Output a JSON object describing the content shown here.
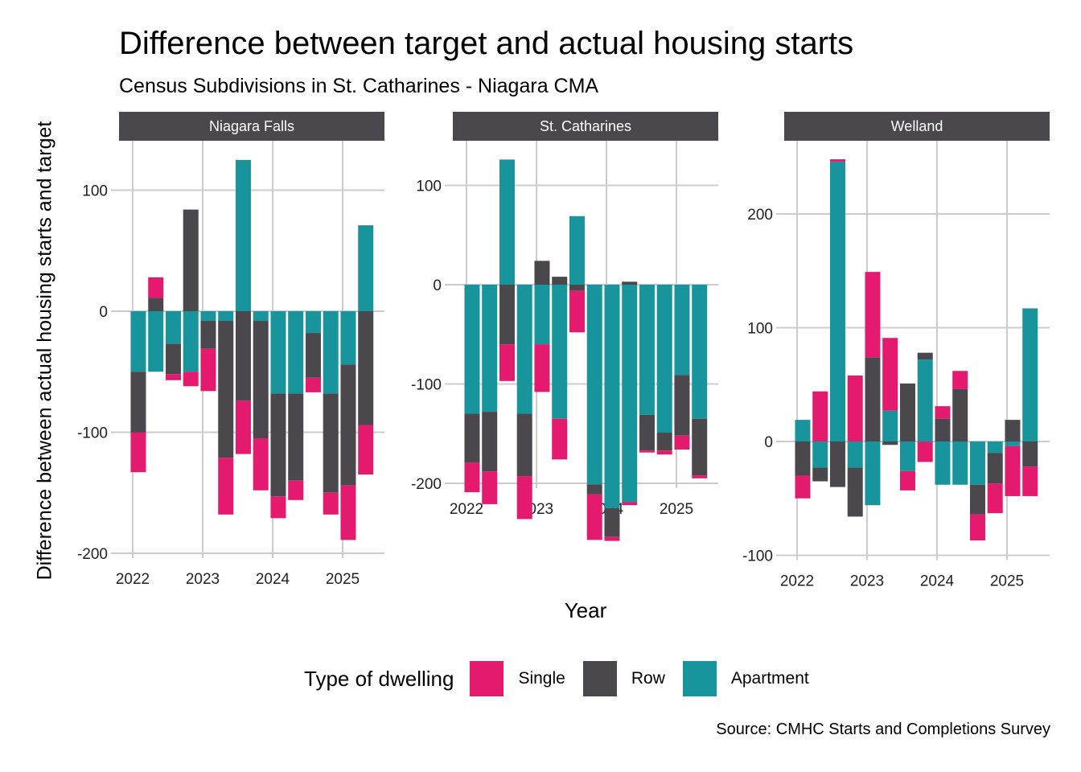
{
  "title": "Difference between target and actual housing starts",
  "subtitle": "Census Subdivisions in St. Catharines - Niagara CMA",
  "caption": "Source: CMHC Starts and Completions Survey",
  "legend": {
    "title": "Type of dwelling",
    "items": [
      {
        "label": "Single",
        "color": "#E31A6E"
      },
      {
        "label": "Row",
        "color": "#4A484C"
      },
      {
        "label": "Apartment",
        "color": "#18949D"
      }
    ]
  },
  "colors": {
    "Single": "#E31A6E",
    "Row": "#4A484C",
    "Apartment": "#18949D",
    "strip": "#4A484C",
    "grid": "#CCCCCC"
  },
  "chart_data": {
    "type": "bar",
    "stacked": true,
    "title": "Difference between target and actual housing starts",
    "subtitle": "Census Subdivisions in St. Catharines - Niagara CMA",
    "xlabel": "Year",
    "ylabel": "Difference between actual housing starts and target",
    "legend_position": "bottom",
    "grid": true,
    "x_ticks": [
      "2022",
      "2023",
      "2024",
      "2025"
    ],
    "series_names": [
      "Single",
      "Row",
      "Apartment"
    ],
    "x": [
      2022.08,
      2022.33,
      2022.58,
      2022.83,
      2023.08,
      2023.33,
      2023.58,
      2023.83,
      2024.08,
      2024.33,
      2024.58,
      2024.83,
      2025.08,
      2025.33
    ],
    "panels": [
      {
        "name": "Niagara Falls",
        "ylim": [
          -205,
          145
        ],
        "y_ticks": [
          -200,
          -100,
          0,
          100
        ],
        "series": [
          {
            "name": "Single",
            "values": [
              -33,
              17,
              -5,
              -12,
              -35,
              -47,
              -44,
              -43,
              -18,
              -16,
              -12,
              -18,
              -45,
              -41
            ]
          },
          {
            "name": "Row",
            "values": [
              -50,
              11,
              -25,
              84,
              -23,
              -113,
              -74,
              -97,
              -85,
              -72,
              -37,
              -82,
              -100,
              -94
            ]
          },
          {
            "name": "Apartment",
            "values": [
              -50,
              -50,
              -27,
              -50,
              -8,
              -8,
              125,
              -8,
              -68,
              -68,
              -18,
              -68,
              -44,
              71
            ]
          }
        ]
      },
      {
        "name": "St. Catharines",
        "ylim": [
          -265,
          145
        ],
        "y_ticks": [
          -200,
          -100,
          0,
          100
        ],
        "series": [
          {
            "name": "Single",
            "values": [
              -30,
              -33,
              -37,
              -43,
              -48,
              -41,
              -42,
              -46,
              -4,
              -3,
              -2,
              -4,
              -14,
              -3
            ]
          },
          {
            "name": "Row",
            "values": [
              -49,
              -60,
              -60,
              -63,
              24,
              8,
              -6,
              -10,
              -29,
              3,
              -36,
              -18,
              -61,
              -57
            ]
          },
          {
            "name": "Apartment",
            "values": [
              -130,
              -128,
              126,
              -130,
              -60,
              -135,
              69,
              -201,
              -225,
              -219,
              -131,
              -149,
              -91,
              -135
            ]
          }
        ]
      },
      {
        "name": "Welland",
        "ylim": [
          -105,
          260
        ],
        "y_ticks": [
          -100,
          0,
          100,
          200
        ],
        "series": [
          {
            "name": "Single",
            "values": [
              -20,
              44,
              2,
              58,
              75,
              64,
              -17,
              -18,
              11,
              16,
              -23,
              -26,
              -44,
              -26
            ]
          },
          {
            "name": "Row",
            "values": [
              -30,
              -12,
              -40,
              -43,
              74,
              -3,
              51,
              6,
              20,
              46,
              -26,
              -27,
              19,
              -22
            ]
          },
          {
            "name": "Apartment",
            "values": [
              19,
              -23,
              246,
              -23,
              -56,
              27,
              -26,
              72,
              -38,
              -38,
              -38,
              -10,
              -4,
              117
            ]
          }
        ]
      }
    ]
  }
}
